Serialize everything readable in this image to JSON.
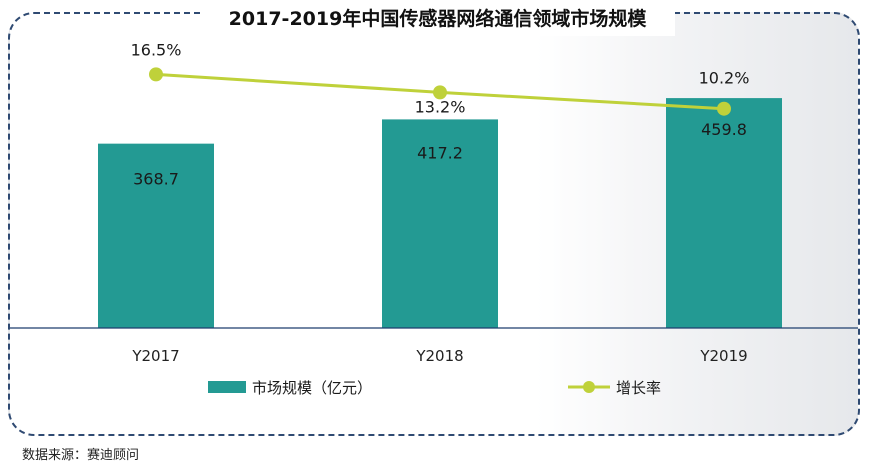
{
  "colors": {
    "bar": "#239a93",
    "line": "#bfd13a",
    "axis": "#1f3f6e",
    "frame": "#2f4a72"
  },
  "chart_data": {
    "type": "bar",
    "title": "2017-2019年中国传感器网络通信领域市场规模",
    "categories": [
      "Y2017",
      "Y2018",
      "Y2019"
    ],
    "series": [
      {
        "name": "市场规模（亿元）",
        "type": "bar",
        "values": [
          368.7,
          417.2,
          459.8
        ],
        "labels": [
          "368.7",
          "417.2",
          "459.8"
        ]
      },
      {
        "name": "增长率",
        "type": "line",
        "values": [
          16.5,
          13.2,
          10.2
        ],
        "labels": [
          "16.5%",
          "13.2%",
          "10.2%"
        ]
      }
    ],
    "ylim": [
      0,
      600
    ],
    "y2lim": [
      -30,
      25
    ],
    "grid": false,
    "legend": "bottom"
  },
  "source": "数据来源：赛迪顾问"
}
